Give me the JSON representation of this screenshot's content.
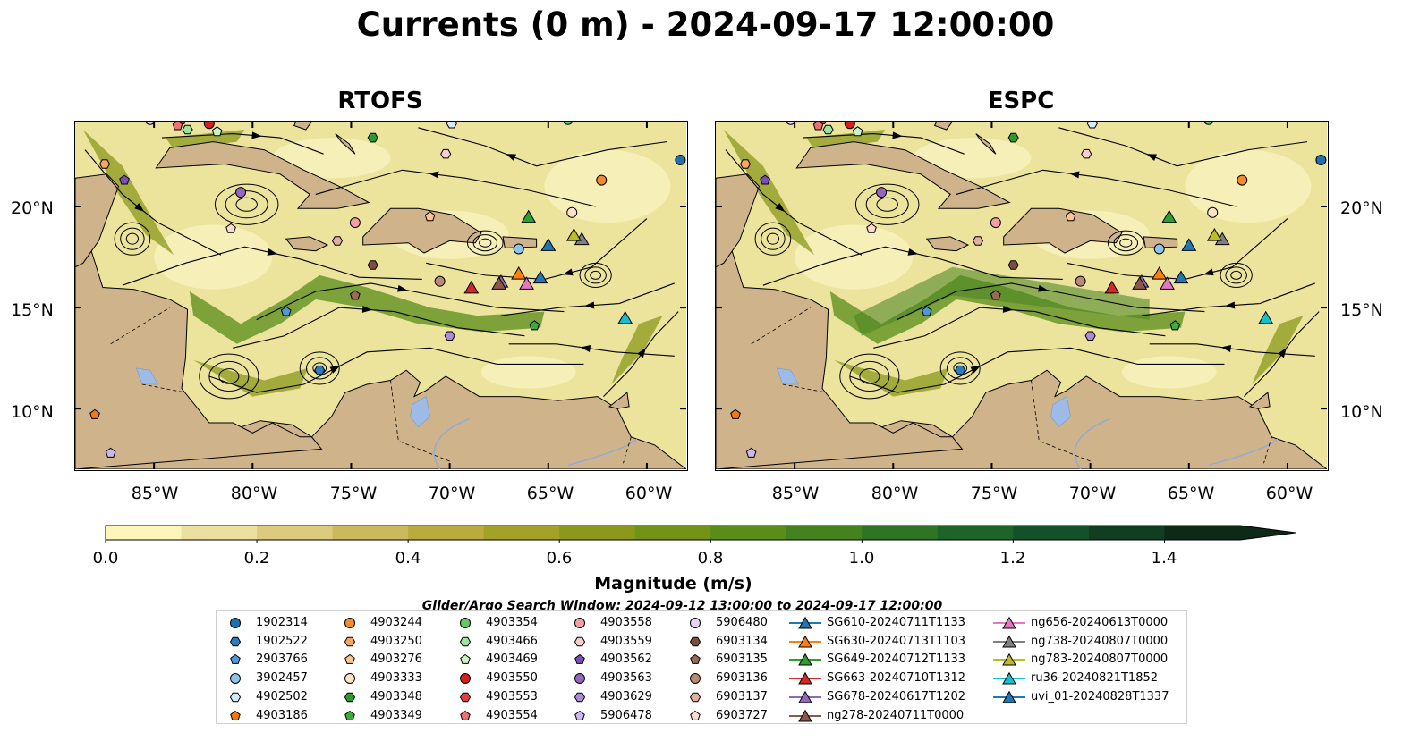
{
  "title": "Currents (0 m) - 2024-09-17 12:00:00",
  "panels": [
    {
      "title": "RTOFS"
    },
    {
      "title": "ESPC"
    }
  ],
  "lat_labels": [
    "20°N",
    "15°N",
    "10°N"
  ],
  "lon_labels": [
    "85°W",
    "80°W",
    "75°W",
    "70°W",
    "65°W",
    "60°W"
  ],
  "map_extent": {
    "lon": [
      -89,
      -58
    ],
    "lat": [
      7,
      24.2
    ]
  },
  "colorbar": {
    "label": "Magnitude (m/s)",
    "ticks": [
      "0.0",
      "0.2",
      "0.4",
      "0.6",
      "0.8",
      "1.0",
      "1.2",
      "1.4"
    ],
    "range": [
      0.0,
      1.5
    ],
    "colors": [
      "#fdf5b9",
      "#ece0a0",
      "#dccb7f",
      "#ccb85d",
      "#b9ab3e",
      "#a3a128",
      "#8b981c",
      "#739318",
      "#5a8c1a",
      "#44821f",
      "#2f7424",
      "#1e6428",
      "#155128",
      "#113d21",
      "#0d2a18"
    ],
    "extend": "max"
  },
  "search_window": "Glider/Argo Search Window: 2024-09-12 13:00:00 to 2024-09-17 12:00:00",
  "legend": {
    "items": [
      {
        "label": "1902314",
        "marker": "circle",
        "color": "#1f6fb0"
      },
      {
        "label": "1902522",
        "marker": "hexagon",
        "color": "#2b7bbf"
      },
      {
        "label": "2903766",
        "marker": "pentagon",
        "color": "#4f9ad6"
      },
      {
        "label": "3902457",
        "marker": "circle",
        "color": "#8fc4ea"
      },
      {
        "label": "4902502",
        "marker": "hexagon",
        "color": "#d6ebfa"
      },
      {
        "label": "4903186",
        "marker": "pentagon",
        "color": "#f07a10"
      },
      {
        "label": "4903244",
        "marker": "circle",
        "color": "#f48a2c"
      },
      {
        "label": "4903250",
        "marker": "hexagon",
        "color": "#f9a660"
      },
      {
        "label": "4903276",
        "marker": "pentagon",
        "color": "#fcc490"
      },
      {
        "label": "4903333",
        "marker": "circle",
        "color": "#fde3c4"
      },
      {
        "label": "4903348",
        "marker": "hexagon",
        "color": "#2e9a2e"
      },
      {
        "label": "4903349",
        "marker": "pentagon",
        "color": "#3aae3a"
      },
      {
        "label": "4903354",
        "marker": "circle",
        "color": "#65c865"
      },
      {
        "label": "4903466",
        "marker": "hexagon",
        "color": "#9ee39e"
      },
      {
        "label": "4903469",
        "marker": "pentagon",
        "color": "#cbf3c5"
      },
      {
        "label": "4903550",
        "marker": "circle",
        "color": "#d42020"
      },
      {
        "label": "4903553",
        "marker": "hexagon",
        "color": "#e04040"
      },
      {
        "label": "4903554",
        "marker": "pentagon",
        "color": "#ee7070"
      },
      {
        "label": "4903558",
        "marker": "circle",
        "color": "#f3a0a0"
      },
      {
        "label": "4903559",
        "marker": "hexagon",
        "color": "#f8cfcf"
      },
      {
        "label": "4903562",
        "marker": "pentagon",
        "color": "#7a4fb5"
      },
      {
        "label": "4903563",
        "marker": "circle",
        "color": "#9467bd"
      },
      {
        "label": "4903629",
        "marker": "hexagon",
        "color": "#ad8cd6"
      },
      {
        "label": "5906478",
        "marker": "pentagon",
        "color": "#cdb6ea"
      },
      {
        "label": "5906480",
        "marker": "circle",
        "color": "#e4d4f6"
      },
      {
        "label": "6903134",
        "marker": "hexagon",
        "color": "#7a4f3f"
      },
      {
        "label": "6903135",
        "marker": "pentagon",
        "color": "#9a6a56"
      },
      {
        "label": "6903136",
        "marker": "circle",
        "color": "#bb8a76"
      },
      {
        "label": "6903137",
        "marker": "hexagon",
        "color": "#e0b0a0"
      },
      {
        "label": "6903727",
        "marker": "pentagon",
        "color": "#fcdccc"
      },
      {
        "label": "SG610-20240711T1133",
        "marker": "triangle",
        "color": "#1f77b4"
      },
      {
        "label": "SG630-20240713T1103",
        "marker": "triangle",
        "color": "#ff7f0e"
      },
      {
        "label": "SG649-20240712T1133",
        "marker": "triangle",
        "color": "#2ca02c"
      },
      {
        "label": "SG663-20240710T1312",
        "marker": "triangle",
        "color": "#d62728"
      },
      {
        "label": "SG678-20240617T1202",
        "marker": "triangle",
        "color": "#9467bd"
      },
      {
        "label": "ng278-20240711T0000",
        "marker": "triangle",
        "color": "#8c564b"
      },
      {
        "label": "ng656-20240613T0000",
        "marker": "triangle",
        "color": "#e377c2"
      },
      {
        "label": "ng738-20240807T0000",
        "marker": "triangle",
        "color": "#7f7f7f"
      },
      {
        "label": "ng783-20240807T0000",
        "marker": "triangle",
        "color": "#bcbd22"
      },
      {
        "label": "ru36-20240821T1852",
        "marker": "triangle",
        "color": "#17becf"
      },
      {
        "label": "uvi_01-20240828T1337",
        "marker": "triangle",
        "color": "#1f77b4"
      }
    ]
  },
  "markers": [
    {
      "id": "1902314",
      "lon": -58.3,
      "lat": 22.3
    },
    {
      "id": "1902522",
      "lon": -76.6,
      "lat": 11.9
    },
    {
      "id": "2903766",
      "lon": -78.3,
      "lat": 14.8
    },
    {
      "id": "3902457",
      "lon": -66.5,
      "lat": 17.9
    },
    {
      "id": "4902502",
      "lon": -69.9,
      "lat": 24.1
    },
    {
      "id": "4903186",
      "lon": -88.0,
      "lat": 9.7
    },
    {
      "id": "4903244",
      "lon": -62.3,
      "lat": 21.3
    },
    {
      "id": "4903250",
      "lon": -87.5,
      "lat": 22.1
    },
    {
      "id": "4903276",
      "lon": -71.0,
      "lat": 19.5
    },
    {
      "id": "4903333",
      "lon": -63.8,
      "lat": 19.7
    },
    {
      "id": "4903348",
      "lon": -73.9,
      "lat": 23.4
    },
    {
      "id": "4903349",
      "lon": -65.7,
      "lat": 14.1
    },
    {
      "id": "4903354",
      "lon": -64.0,
      "lat": 24.3
    },
    {
      "id": "4903466",
      "lon": -83.3,
      "lat": 23.8
    },
    {
      "id": "4903469",
      "lon": -81.8,
      "lat": 23.7
    },
    {
      "id": "4903550",
      "lon": -82.2,
      "lat": 24.1
    },
    {
      "id": "4903553",
      "lon": -83.6,
      "lat": 24.3
    },
    {
      "id": "4903554",
      "lon": -83.8,
      "lat": 24.0
    },
    {
      "id": "4903558",
      "lon": -74.8,
      "lat": 19.2
    },
    {
      "id": "4903559",
      "lon": -70.2,
      "lat": 22.6
    },
    {
      "id": "4903562",
      "lon": -86.5,
      "lat": 21.3
    },
    {
      "id": "4903563",
      "lon": -80.6,
      "lat": 20.7
    },
    {
      "id": "4903629",
      "lon": -70.0,
      "lat": 13.6
    },
    {
      "id": "5906478",
      "lon": -87.2,
      "lat": 7.8
    },
    {
      "id": "5906480",
      "lon": -85.2,
      "lat": 24.3
    },
    {
      "id": "6903134",
      "lon": -73.9,
      "lat": 17.1
    },
    {
      "id": "6903135",
      "lon": -74.8,
      "lat": 15.6
    },
    {
      "id": "6903136",
      "lon": -70.5,
      "lat": 16.3
    },
    {
      "id": "6903137",
      "lon": -75.7,
      "lat": 18.3
    },
    {
      "id": "6903727",
      "lon": -81.1,
      "lat": 18.9
    },
    {
      "id": "SG610-20240711T1133",
      "lon": -65.0,
      "lat": 18.1
    },
    {
      "id": "SG630-20240713T1103",
      "lon": -66.5,
      "lat": 16.7
    },
    {
      "id": "SG649-20240712T1133",
      "lon": -66.0,
      "lat": 19.5
    },
    {
      "id": "SG663-20240710T1312",
      "lon": -68.9,
      "lat": 16.0
    },
    {
      "id": "SG678-20240617T1202",
      "lon": -67.4,
      "lat": 16.3
    },
    {
      "id": "ng278-20240711T0000",
      "lon": -67.5,
      "lat": 16.2
    },
    {
      "id": "ng656-20240613T0000",
      "lon": -66.1,
      "lat": 16.2
    },
    {
      "id": "ng738-20240807T0000",
      "lon": -63.3,
      "lat": 18.4
    },
    {
      "id": "ng783-20240807T0000",
      "lon": -63.7,
      "lat": 18.6
    },
    {
      "id": "ru36-20240821T1852",
      "lon": -61.1,
      "lat": 14.5
    },
    {
      "id": "uvi_01-20240828T1337",
      "lon": -65.4,
      "lat": 16.5
    }
  ]
}
